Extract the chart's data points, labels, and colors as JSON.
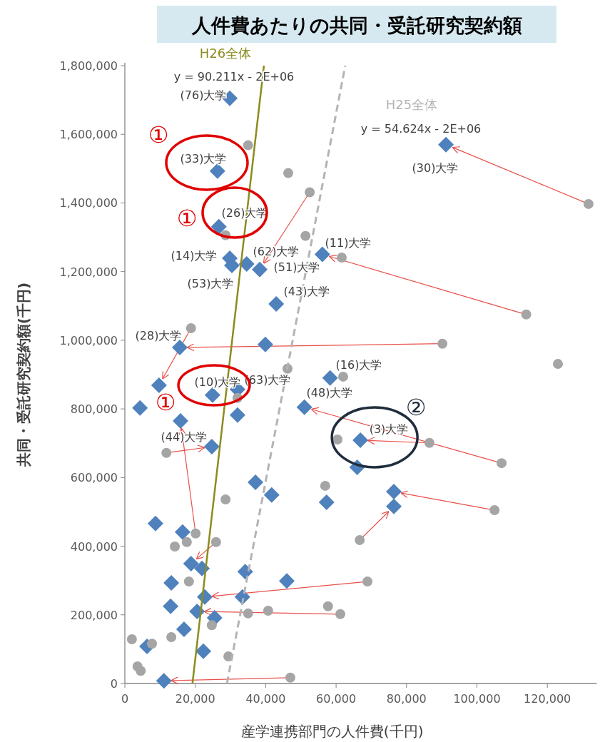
{
  "chart_data": {
    "type": "scatter",
    "title": "人件費あたりの共同・受託研究契約額",
    "xlabel": "産学連携部門の人件費(千円)",
    "ylabel": "共同・受託研究契約額(千円)",
    "xlim": [
      0,
      134000
    ],
    "ylim": [
      0,
      1800000
    ],
    "xticks": [
      0,
      {
        "value": 20000,
        "label": "20,000"
      },
      {
        "value": 40000,
        "label": "40,000"
      },
      {
        "value": 60000,
        "label": "60,000"
      },
      {
        "value": 80000,
        "label": "80,000"
      },
      {
        "value": 100000,
        "label": "100,000"
      },
      {
        "value": 120000,
        "label": "120,000"
      }
    ],
    "yticks": [
      0,
      {
        "value": 200000,
        "label": "200,000"
      },
      {
        "value": 400000,
        "label": "400,000"
      },
      {
        "value": 600000,
        "label": "600,000"
      },
      {
        "value": 800000,
        "label": "800,000"
      },
      {
        "value": 1000000,
        "label": "1,000,000"
      },
      {
        "value": 1200000,
        "label": "1,200,000"
      },
      {
        "value": 1400000,
        "label": "1,400,000"
      },
      {
        "value": 1600000,
        "label": "1,600,000"
      },
      {
        "value": 1800000,
        "label": "1,800,000"
      }
    ],
    "grid": false,
    "series": [
      {
        "type": "scatter",
        "marker": "diamond",
        "color": "#4f81bd",
        "x": [
          91200,
          56100,
          15600,
          9700,
          38300,
          66900,
          51000,
          76400,
          76400,
          24700,
          15800,
          18800,
          22700,
          20500,
          11100,
          29800,
          26300,
          26700,
          29800,
          30400,
          34600,
          43000,
          39900,
          4300,
          24900,
          32000,
          32000,
          58300,
          66000,
          37100,
          41700,
          57300,
          8700,
          16400,
          21900,
          34200,
          46000,
          13200,
          33400,
          25500,
          16800,
          6300,
          22300,
          13000
        ],
        "values": [
          1570000,
          1250000,
          979000,
          869000,
          1206000,
          709000,
          805000,
          559000,
          516000,
          690000,
          765000,
          349000,
          252000,
          210000,
          8000,
          1705000,
          1493000,
          1331000,
          1239000,
          1218000,
          1222000,
          1106000,
          988000,
          803000,
          840000,
          857000,
          782000,
          890000,
          630000,
          586000,
          549000,
          528000,
          466000,
          441000,
          335000,
          326000,
          299000,
          293000,
          252000,
          191000,
          158000,
          108000,
          94000,
          225000
        ]
      },
      {
        "type": "scatter",
        "marker": "circle",
        "color": "#a5a5a5",
        "x": [
          131700,
          114000,
          90200,
          18800,
          52500,
          86500,
          107000,
          105000,
          66700,
          11800,
          20100,
          25900,
          68900,
          61200,
          47000,
          null,
          null,
          null,
          null,
          null,
          null,
          null,
          null,
          null,
          null,
          null,
          null,
          null,
          null,
          null,
          null,
          null,
          null,
          null,
          null,
          null,
          null,
          null,
          null,
          null,
          null,
          null,
          null,
          null,
          35000,
          46400,
          51300,
          28600,
          61600,
          123000,
          46200,
          62000,
          32000,
          60400,
          56900,
          28600,
          17600,
          14200,
          18200,
          57700,
          40700,
          35000,
          24700,
          13200,
          7700,
          2000,
          3600,
          4500,
          29400
        ],
        "values": [
          1397000,
          1075000,
          990000,
          1035000,
          1431000,
          701000,
          642000,
          505000,
          418000,
          672000,
          437000,
          412000,
          297000,
          202000,
          17000,
          null,
          null,
          null,
          null,
          null,
          null,
          null,
          null,
          null,
          null,
          null,
          null,
          null,
          null,
          null,
          null,
          null,
          null,
          null,
          null,
          null,
          null,
          null,
          null,
          null,
          null,
          null,
          null,
          null,
          1568000,
          1487000,
          1304000,
          1306000,
          1241000,
          931000,
          917000,
          894000,
          832000,
          711000,
          576000,
          536000,
          412000,
          399000,
          297000,
          225000,
          212000,
          204000,
          170000,
          135000,
          116000,
          129000,
          50000,
          37000,
          79000
        ]
      },
      {
        "type": "line",
        "name": "H26全体",
        "color": "#8c8c1e",
        "line_style": "solid",
        "x": [
          19200,
          39500
        ],
        "values": [
          0,
          1800000
        ]
      },
      {
        "type": "line",
        "name": "H25全体",
        "color": "#b4b4b4",
        "line_style": "dashed",
        "x": [
          29000,
          62600
        ],
        "values": [
          0,
          1800000
        ]
      }
    ],
    "annotations": [
      "y = 90.211x - 2E+06",
      "y = 54.624x - 2E+06",
      "(76)大学",
      "(33)大学",
      "(30)大学",
      "(26)大学",
      "(14)大学",
      "(62)大学",
      "(11)大学",
      "(51)大学",
      "(53)大学",
      "(43)大学",
      {
        "text": "(28)大学",
        "x": 15600,
        "y": 979000
      },
      "(16)大学",
      "(10)大学",
      "(63)大学",
      "(48)大学",
      "(3)大学",
      "(44)大学",
      "①",
      "①",
      "①",
      {
        "text": "②",
        "x": 66900,
        "y": 709000
      }
    ]
  }
}
